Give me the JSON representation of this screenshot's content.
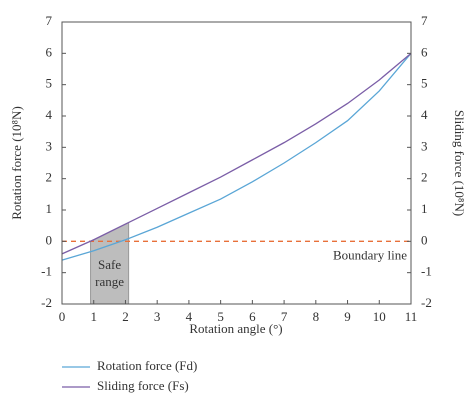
{
  "chart_data": {
    "type": "line",
    "x": [
      0,
      1,
      2,
      3,
      4,
      5,
      6,
      7,
      8,
      9,
      10,
      11
    ],
    "series": [
      {
        "name": "Rotation force (Fd)",
        "color": "#5aa6d6",
        "values": [
          -0.6,
          -0.3,
          0.05,
          0.45,
          0.9,
          1.35,
          1.9,
          2.5,
          3.15,
          3.85,
          4.8,
          6
        ]
      },
      {
        "name": "Sliding force (Fs)",
        "color": "#7b5ea7",
        "values": [
          -0.4,
          0.05,
          0.55,
          1.05,
          1.55,
          2.05,
          2.6,
          3.15,
          3.75,
          4.4,
          5.15,
          6
        ]
      }
    ],
    "xlabel": "Rotation angle (°)",
    "ylabel": "Rotation force (10⁸N)",
    "y2label": "Sliding force (10⁸N)",
    "xlim": [
      0,
      11
    ],
    "xticks": [
      0,
      1,
      2,
      3,
      4,
      5,
      6,
      7,
      8,
      9,
      10,
      11
    ],
    "ylim": [
      -2,
      7
    ],
    "yticks": [
      -2,
      -1,
      0,
      1,
      2,
      3,
      4,
      5,
      6,
      7
    ],
    "y2lim": [
      -2,
      7
    ],
    "y2ticks": [
      -2,
      -1,
      0,
      1,
      2,
      3,
      4,
      5,
      6,
      7
    ],
    "reference_line": {
      "value": 0,
      "label": "Boundary line",
      "color": "#e8703a"
    },
    "shade": {
      "label": [
        "Safe",
        "range"
      ],
      "x_range": [
        0.9,
        2.1
      ],
      "color": "#bdbdbd"
    }
  }
}
